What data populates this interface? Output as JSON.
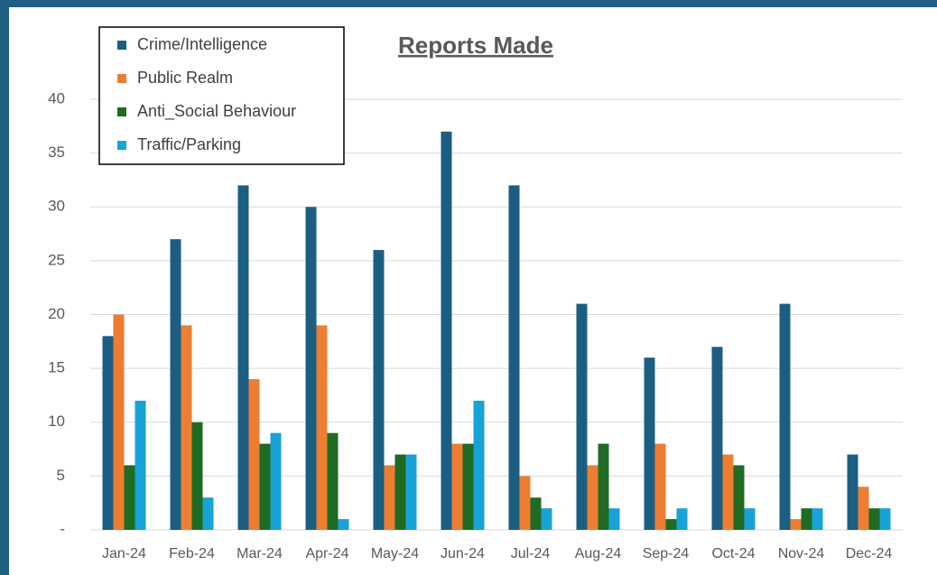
{
  "chart_data": {
    "type": "bar",
    "title": "Reports Made",
    "categories": [
      "Jan-24",
      "Feb-24",
      "Mar-24",
      "Apr-24",
      "May-24",
      "Jun-24",
      "Jul-24",
      "Aug-24",
      "Sep-24",
      "Oct-24",
      "Nov-24",
      "Dec-24"
    ],
    "series": [
      {
        "name": "Crime/Intelligence",
        "color": "#1b5e82",
        "values": [
          18,
          27,
          32,
          30,
          26,
          37,
          32,
          21,
          16,
          17,
          21,
          7
        ]
      },
      {
        "name": "Public Realm",
        "color": "#ed7d31",
        "values": [
          20,
          19,
          14,
          19,
          6,
          8,
          5,
          6,
          8,
          7,
          1,
          4
        ]
      },
      {
        "name": "Anti_Social Behaviour",
        "color": "#1e6b24",
        "values": [
          6,
          10,
          8,
          9,
          7,
          8,
          3,
          8,
          1,
          6,
          2,
          2
        ]
      },
      {
        "name": "Traffic/Parking",
        "color": "#17a2d8",
        "values": [
          12,
          3,
          9,
          1,
          7,
          12,
          2,
          2,
          2,
          2,
          2,
          2
        ]
      }
    ],
    "ylim": [
      0,
      40
    ],
    "yticks": [
      {
        "value": 0,
        "label": "-"
      },
      5,
      10,
      15,
      20,
      25,
      30,
      35,
      40
    ],
    "grid": true,
    "legend": "upper left"
  }
}
